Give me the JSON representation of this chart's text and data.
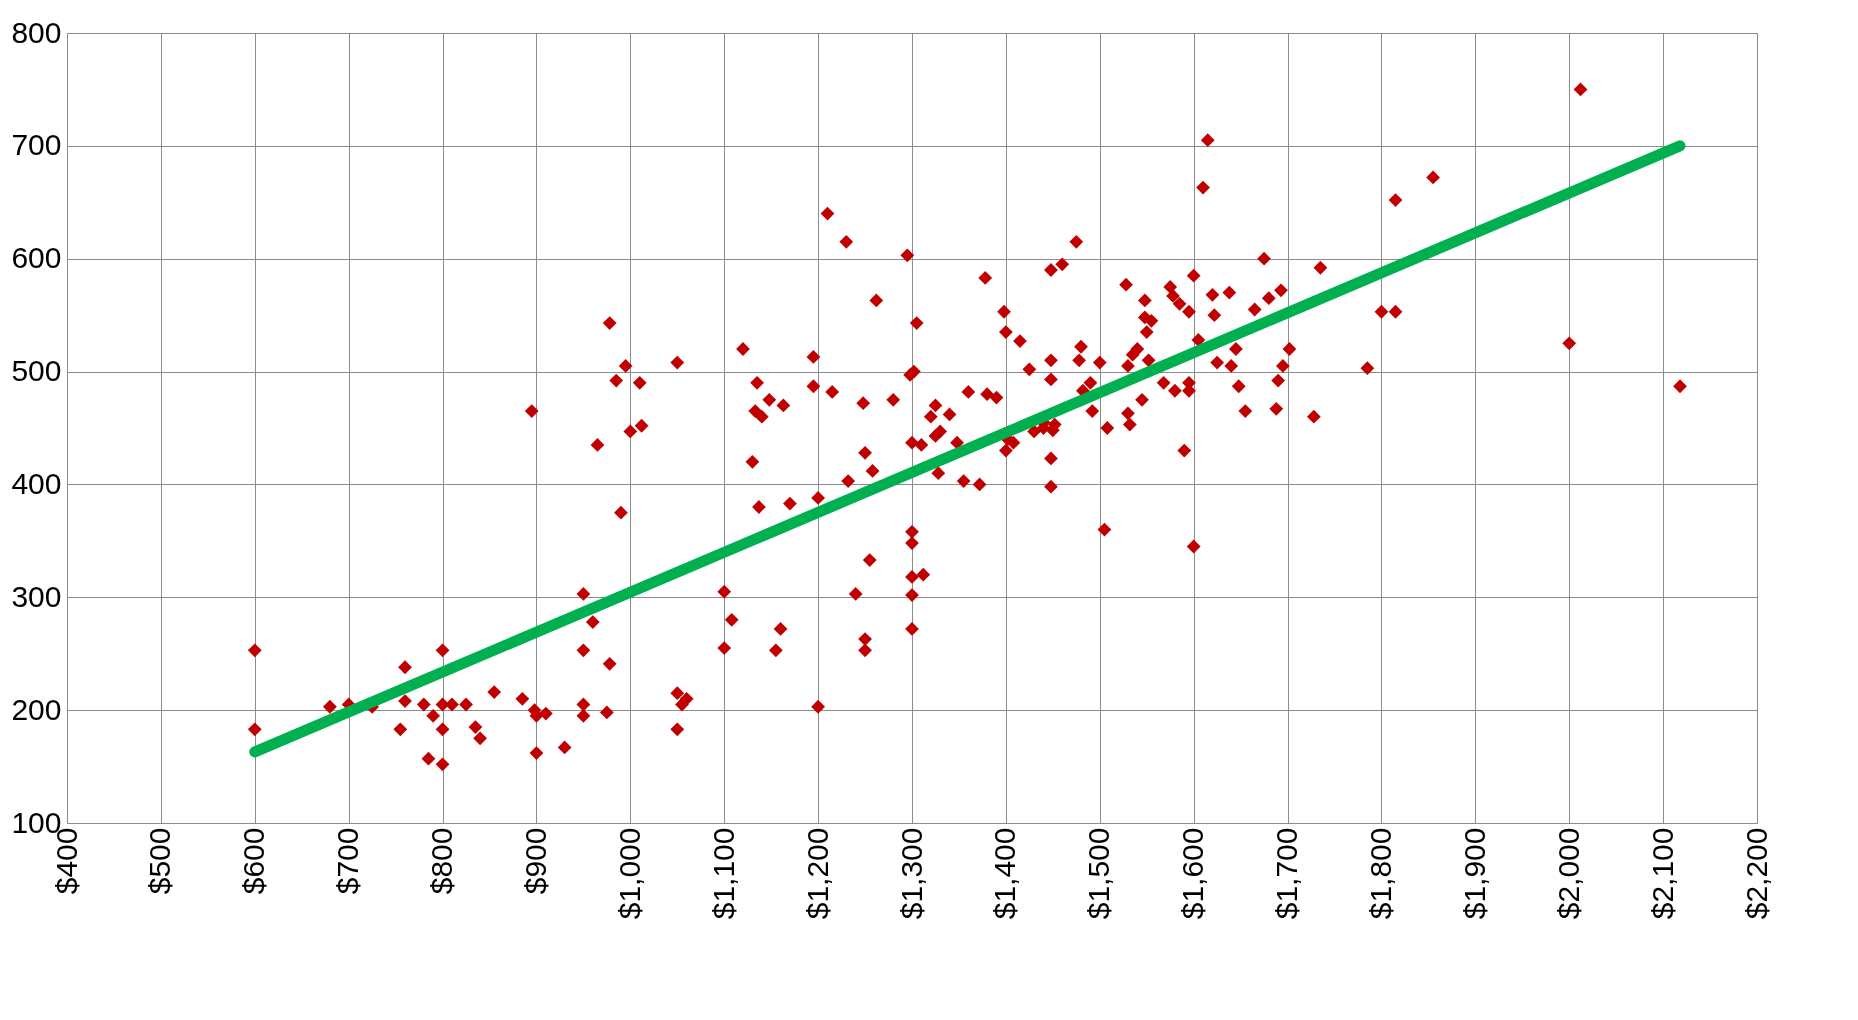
{
  "chart_data": {
    "type": "scatter",
    "xlim": [
      400,
      2200
    ],
    "ylim": [
      100,
      800
    ],
    "xticks": [
      {
        "value": 400,
        "label": "$400"
      },
      {
        "value": 500,
        "label": "$500"
      },
      {
        "value": 600,
        "label": "$600"
      },
      {
        "value": 700,
        "label": "$700"
      },
      {
        "value": 800,
        "label": "$800"
      },
      {
        "value": 900,
        "label": "$900"
      },
      {
        "value": 1000,
        "label": "$1,000"
      },
      {
        "value": 1100,
        "label": "$1,100"
      },
      {
        "value": 1200,
        "label": "$1,200"
      },
      {
        "value": 1300,
        "label": "$1,300"
      },
      {
        "value": 1400,
        "label": "$1,400"
      },
      {
        "value": 1500,
        "label": "$1,500"
      },
      {
        "value": 1600,
        "label": "$1,600"
      },
      {
        "value": 1700,
        "label": "$1,700"
      },
      {
        "value": 1800,
        "label": "$1,800"
      },
      {
        "value": 1900,
        "label": "$1,900"
      },
      {
        "value": 2000,
        "label": "$2,000"
      },
      {
        "value": 2100,
        "label": "$2,100"
      },
      {
        "value": 2200,
        "label": "$2,200"
      }
    ],
    "yticks": [
      100,
      200,
      300,
      400,
      500,
      600,
      700,
      800
    ],
    "grid": true,
    "series": [
      {
        "color": "#c00000",
        "marker": "diamond",
        "x": [
          600,
          600,
          680,
          700,
          725,
          760,
          755,
          760,
          780,
          785,
          790,
          800,
          800,
          800,
          800,
          810,
          825,
          835,
          840,
          855,
          885,
          895,
          898,
          900,
          900,
          910,
          930,
          950,
          950,
          950,
          950,
          960,
          965,
          975,
          978,
          978,
          985,
          990,
          995,
          1000,
          1010,
          1012,
          1050,
          1050,
          1050,
          1055,
          1060,
          1100,
          1100,
          1108,
          1120,
          1130,
          1133,
          1135,
          1137,
          1140,
          1148,
          1155,
          1160,
          1163,
          1170,
          1195,
          1195,
          1200,
          1200,
          1210,
          1215,
          1230,
          1232,
          1240,
          1248,
          1250,
          1250,
          1250,
          1255,
          1258,
          1262,
          1280,
          1295,
          1298,
          1300,
          1300,
          1300,
          1300,
          1300,
          1300,
          1302,
          1305,
          1310,
          1312,
          1320,
          1325,
          1325,
          1328,
          1330,
          1340,
          1348,
          1355,
          1360,
          1372,
          1378,
          1380,
          1390,
          1398,
          1400,
          1400,
          1402,
          1408,
          1415,
          1425,
          1430,
          1440,
          1440,
          1448,
          1448,
          1448,
          1448,
          1448,
          1450,
          1452,
          1460,
          1475,
          1478,
          1480,
          1482,
          1490,
          1492,
          1500,
          1505,
          1508,
          1528,
          1530,
          1530,
          1532,
          1535,
          1540,
          1545,
          1548,
          1548,
          1550,
          1552,
          1555,
          1568,
          1575,
          1578,
          1580,
          1585,
          1590,
          1595,
          1595,
          1595,
          1600,
          1600,
          1605,
          1610,
          1615,
          1620,
          1622,
          1625,
          1638,
          1640,
          1645,
          1648,
          1655,
          1665,
          1675,
          1680,
          1688,
          1690,
          1693,
          1695,
          1702,
          1728,
          1735,
          1785,
          1800,
          1815,
          1815,
          1855,
          2000,
          2012,
          2118
        ],
        "values": [
          253,
          183,
          203,
          205,
          203,
          238,
          183,
          208,
          205,
          157,
          195,
          253,
          205,
          183,
          152,
          205,
          205,
          185,
          175,
          216,
          210,
          465,
          200,
          195,
          162,
          197,
          167,
          303,
          253,
          205,
          195,
          278,
          435,
          198,
          241,
          543,
          492,
          375,
          505,
          447,
          490,
          452,
          508,
          215,
          183,
          205,
          210,
          305,
          255,
          280,
          520,
          420,
          465,
          490,
          380,
          460,
          475,
          253,
          272,
          470,
          383,
          513,
          487,
          388,
          203,
          640,
          482,
          615,
          403,
          303,
          472,
          428,
          263,
          253,
          333,
          412,
          563,
          475,
          603,
          497,
          437,
          358,
          348,
          318,
          302,
          272,
          500,
          543,
          435,
          320,
          460,
          470,
          443,
          410,
          447,
          462,
          437,
          403,
          482,
          400,
          583,
          480,
          477,
          553,
          535,
          430,
          440,
          437,
          527,
          502,
          447,
          455,
          450,
          590,
          510,
          493,
          423,
          398,
          448,
          453,
          595,
          615,
          510,
          522,
          483,
          490,
          465,
          508,
          360,
          450,
          577,
          505,
          463,
          453,
          515,
          520,
          475,
          563,
          548,
          535,
          510,
          545,
          490,
          575,
          567,
          483,
          560,
          430,
          553,
          490,
          483,
          585,
          345,
          528,
          663,
          705,
          568,
          550,
          508,
          570,
          505,
          520,
          487,
          465,
          555,
          600,
          565,
          467,
          492,
          572,
          505,
          520,
          460,
          592,
          503,
          553,
          553,
          652,
          672,
          525,
          750,
          487
        ]
      },
      {
        "type": "line",
        "color": "#00b050",
        "marker": "none",
        "line_style": "solid",
        "x": [
          600,
          2118
        ],
        "values": [
          163,
          700
        ]
      }
    ]
  }
}
